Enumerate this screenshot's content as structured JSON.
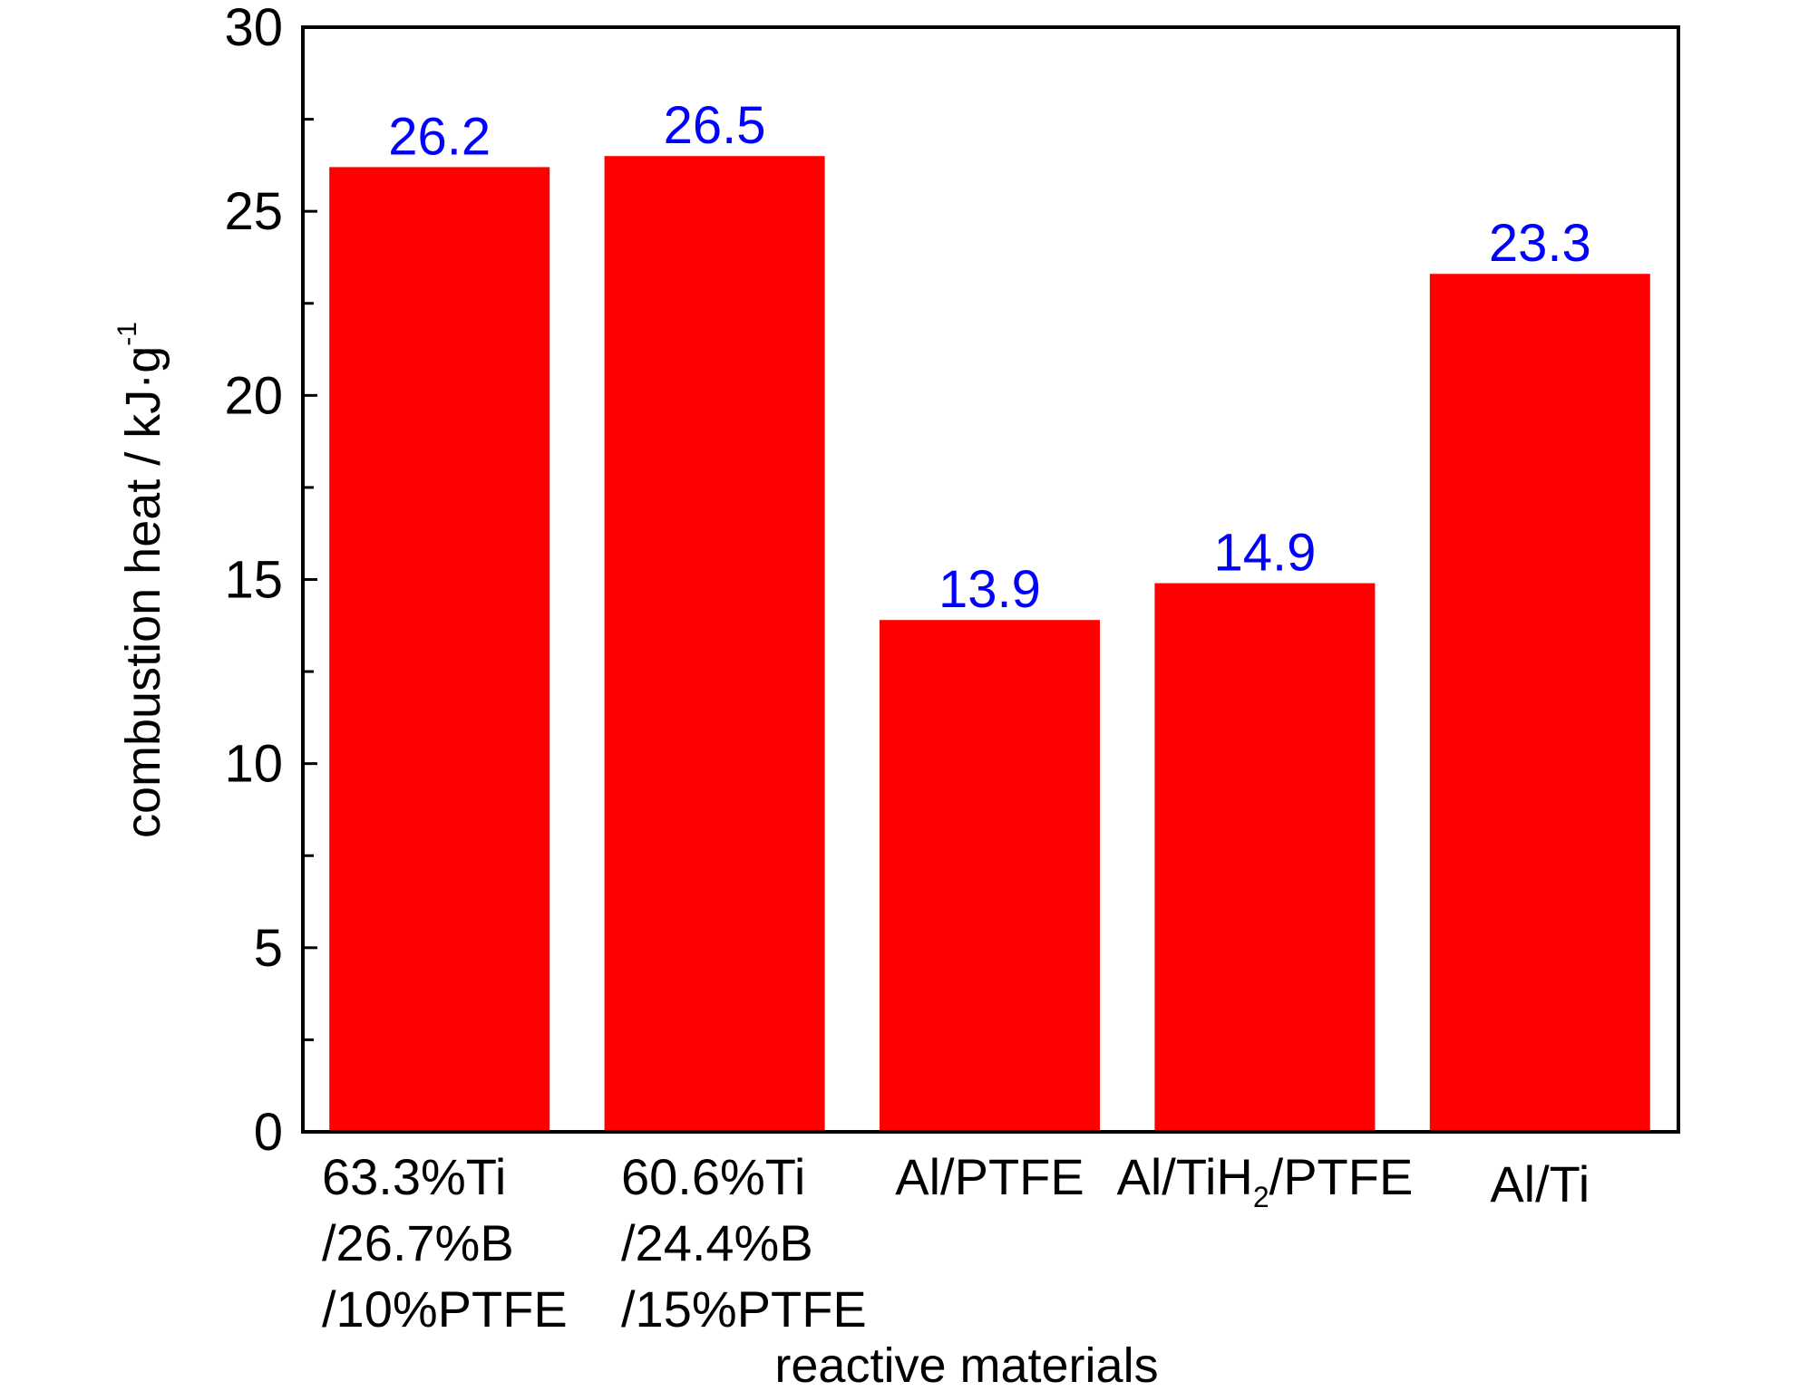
{
  "chart_data": {
    "type": "bar",
    "title": "",
    "xlabel": "reactive materials",
    "ylabel": "combustion heat / kJ·g⁻¹",
    "ylabel_main": "combustion heat / kJ·g",
    "ylabel_sup": "-1",
    "ylim": [
      0,
      30
    ],
    "yticks": [
      0,
      5,
      10,
      15,
      20,
      25,
      30
    ],
    "grid": false,
    "categories": [
      [
        "63.3%Ti",
        "/26.7%B",
        "/10%PTFE"
      ],
      [
        "60.6%Ti",
        "/24.4%B",
        "/15%PTFE"
      ],
      [
        "Al/PTFE"
      ],
      [
        "Al/TiH2/PTFE"
      ],
      [
        "Al/Ti"
      ]
    ],
    "values": [
      26.2,
      26.5,
      13.9,
      14.9,
      23.3
    ],
    "value_labels": [
      "26.2",
      "26.5",
      "13.9",
      "14.9",
      "23.3"
    ],
    "bar_color": "#ff0000",
    "label_color": "#0000ff"
  }
}
